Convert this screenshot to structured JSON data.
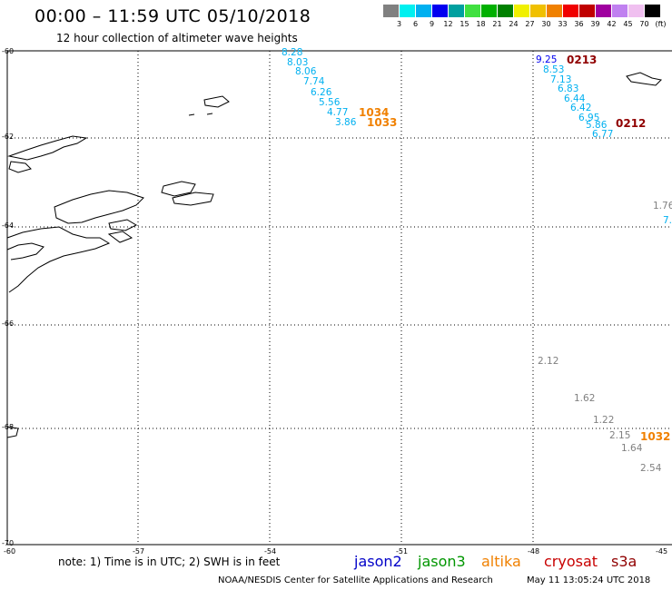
{
  "header": {
    "title": "00:00 – 11:59 UTC 05/10/2018",
    "subtitle": "12 hour collection of altimeter wave heights"
  },
  "scale": {
    "ticks": [
      "3",
      "6",
      "9",
      "12",
      "15",
      "18",
      "21",
      "24",
      "27",
      "30",
      "33",
      "36",
      "39",
      "42",
      "45",
      "70",
      "(ft)"
    ],
    "colors": [
      "#808080",
      "#00f0f0",
      "#00b0f0",
      "#0000f0",
      "#00a0a0",
      "#40e040",
      "#00b000",
      "#008000",
      "#f0f000",
      "#f0c000",
      "#f08000",
      "#f00000",
      "#c00000",
      "#a000a0",
      "#c080f0",
      "#f0c0f0",
      "#000000"
    ]
  },
  "axes": {
    "lat_labels": [
      "-60",
      "-62",
      "-64",
      "-66",
      "-68",
      "-70"
    ],
    "lon_labels": [
      "-60",
      "-57",
      "-54",
      "-51",
      "-48",
      "-45"
    ]
  },
  "observations": {
    "track_a": [
      "8.28",
      "8.03",
      "8.06",
      "7.74",
      "6.26",
      "5.56",
      "4.77",
      "3.86"
    ],
    "track_a_color": "#00b0f0",
    "track_b_first": "9.25",
    "track_b_first_color": "#0000f0",
    "track_b": [
      "8.53",
      "7.13",
      "6.83",
      "6.44",
      "6.42",
      "6.95",
      "5.86",
      "6.77"
    ],
    "track_b_color": "#00b0f0",
    "track_c": [
      "2.12",
      "1.62",
      "1.22",
      "2.15",
      "1.64",
      "2.54"
    ],
    "track_c_color": "#808080",
    "edge_gray": "1.76",
    "edge_cyan": "7."
  },
  "passes": {
    "p1034": "1034",
    "p1033": "1033",
    "p1032": "1032",
    "p0213": "0213",
    "p0212": "0212",
    "orange": "#f08000",
    "darkred": "#900000"
  },
  "footer": {
    "note": "note: 1) Time is in UTC; 2) SWH is in feet",
    "satellites": [
      {
        "label": "jason2",
        "color": "#0000c8"
      },
      {
        "label": "jason3",
        "color": "#009600"
      },
      {
        "label": "altika",
        "color": "#f08000"
      },
      {
        "label": "cryosat",
        "color": "#c80000"
      },
      {
        "label": "s3a",
        "color": "#900000"
      }
    ],
    "credit": "NOAA/NESDIS Center for Satellite Applications and Research",
    "timestamp": "May 11 13:05:24 UTC 2018"
  }
}
